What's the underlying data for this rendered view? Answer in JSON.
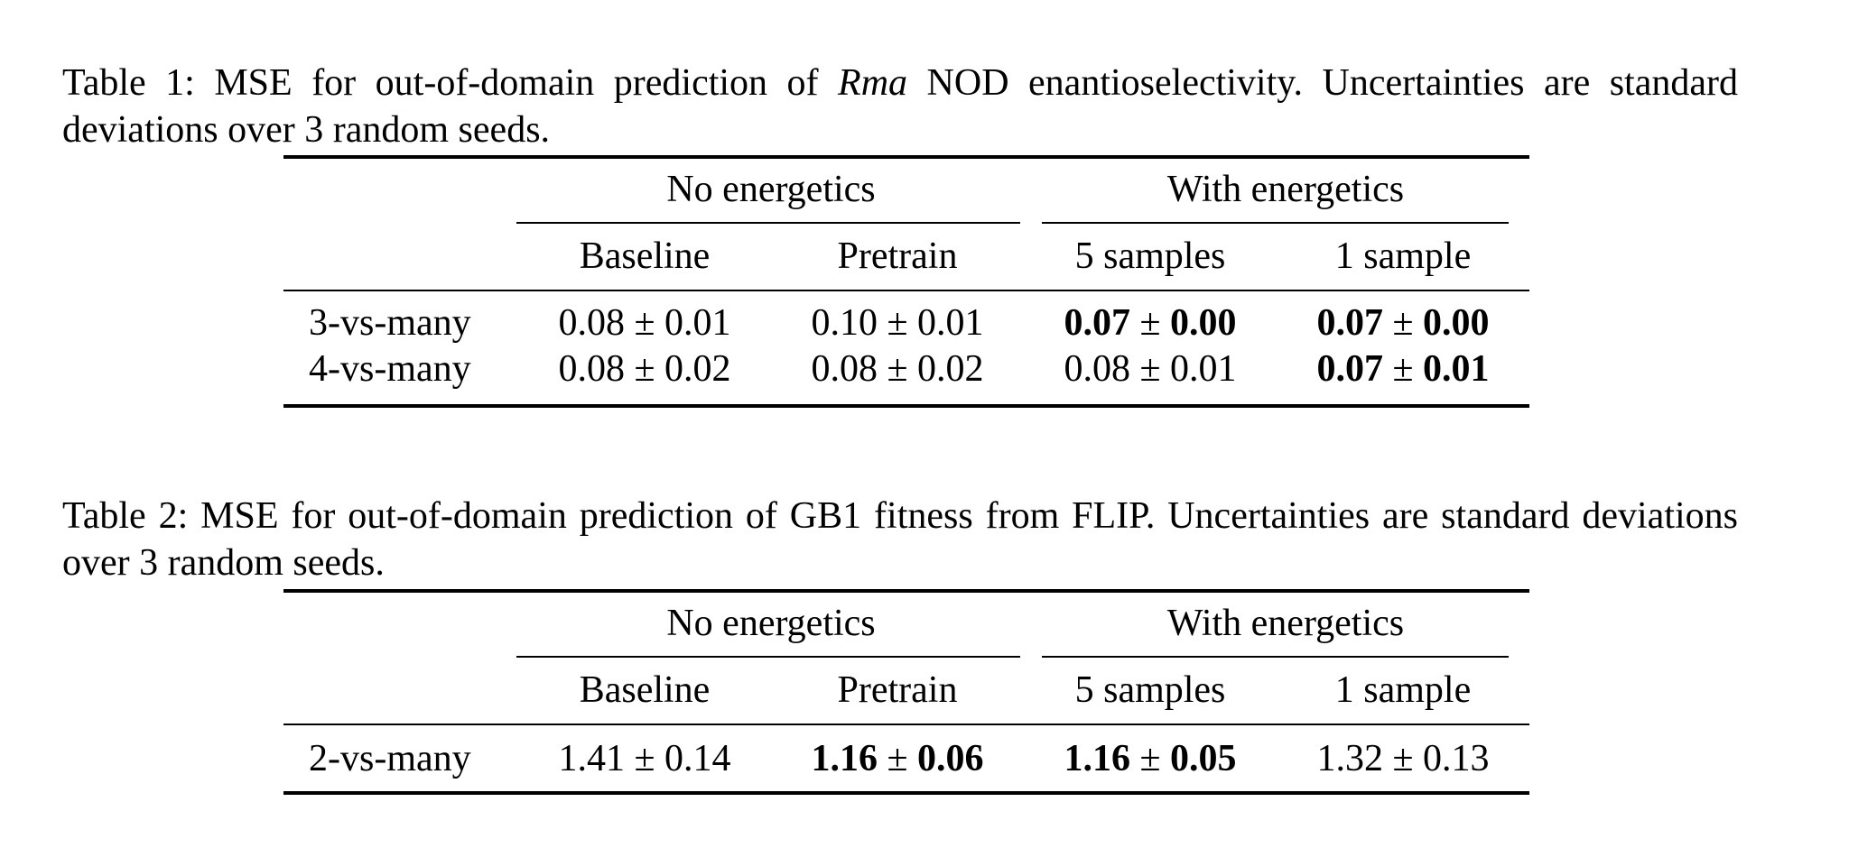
{
  "table1": {
    "caption_before": "Table 1:  MSE for out-of-domain prediction of",
    "caption_italic": "Rma",
    "caption_after": "NOD enantioselectivity.  Uncertainties are standard deviations over 3 random seeds.",
    "group_headers": [
      "No energetics",
      "With energetics"
    ],
    "columns": [
      "Baseline",
      "Pretrain",
      "5 samples",
      "1 sample"
    ],
    "rows": [
      {
        "label": "3-vs-many",
        "cells": [
          {
            "mean": "0.08",
            "pm": "±",
            "sd": "0.01",
            "bold": false
          },
          {
            "mean": "0.10",
            "pm": "±",
            "sd": "0.01",
            "bold": false
          },
          {
            "mean": "0.07",
            "pm": "±",
            "sd": "0.00",
            "bold": true
          },
          {
            "mean": "0.07",
            "pm": "±",
            "sd": "0.00",
            "bold": true
          }
        ]
      },
      {
        "label": "4-vs-many",
        "cells": [
          {
            "mean": "0.08",
            "pm": "±",
            "sd": "0.02",
            "bold": false
          },
          {
            "mean": "0.08",
            "pm": "±",
            "sd": "0.02",
            "bold": false
          },
          {
            "mean": "0.08",
            "pm": "±",
            "sd": "0.01",
            "bold": false
          },
          {
            "mean": "0.07",
            "pm": "±",
            "sd": "0.01",
            "bold": true
          }
        ]
      }
    ]
  },
  "table2": {
    "caption": "Table 2: MSE for out-of-domain prediction of GB1 fitness from FLIP. Uncertainties are standard deviations over 3 random seeds.",
    "group_headers": [
      "No energetics",
      "With energetics"
    ],
    "columns": [
      "Baseline",
      "Pretrain",
      "5 samples",
      "1 sample"
    ],
    "rows": [
      {
        "label": "2-vs-many",
        "cells": [
          {
            "mean": "1.41",
            "pm": "±",
            "sd": "0.14",
            "bold": false
          },
          {
            "mean": "1.16",
            "pm": "±",
            "sd": "0.06",
            "bold": true
          },
          {
            "mean": "1.16",
            "pm": "±",
            "sd": "0.05",
            "bold": true
          },
          {
            "mean": "1.32",
            "pm": "±",
            "sd": "0.13",
            "bold": false
          }
        ]
      }
    ]
  }
}
